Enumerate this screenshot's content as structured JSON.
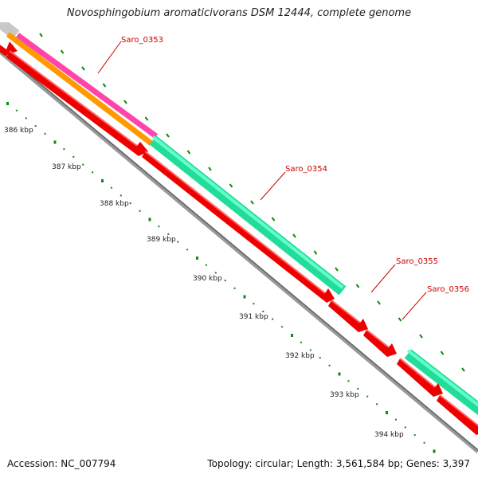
{
  "title": "Novosphingobium aromaticivorans DSM 12444, complete genome",
  "footer": {
    "accession": "Accession: NC_007794",
    "summary": "Topology: circular; Length: 3,561,584 bp; Genes: 3,397"
  },
  "scale_ticks": [
    "386 kbp",
    "387 kbp",
    "388 kbp",
    "389 kbp",
    "390 kbp",
    "391 kbp",
    "392 kbp",
    "393 kbp",
    "394 kbp"
  ],
  "genes": [
    {
      "label": "Saro_0353"
    },
    {
      "label": "Saro_0354"
    },
    {
      "label": "Saro_0355"
    },
    {
      "label": "Saro_0356"
    }
  ],
  "colors": {
    "cds": "#ff0000",
    "cds_dark": "#d00000",
    "rna_feature": "#33ff99",
    "magenta_feature": "#ff33aa",
    "orange_feature": "#ff9900",
    "gray_feature": "#cccccc",
    "backbone": "#888888",
    "gc_dots": "#118811",
    "label": "#cc0000"
  }
}
